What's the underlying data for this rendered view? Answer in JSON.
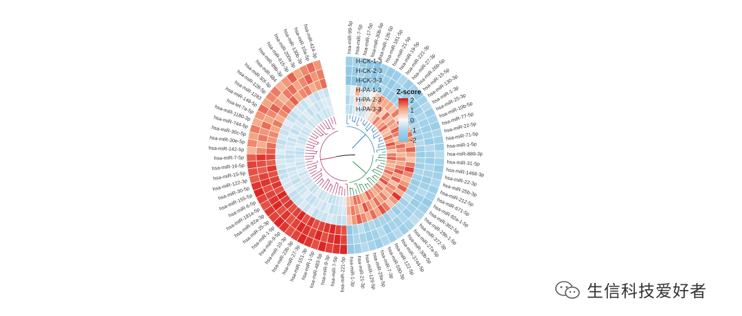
{
  "chart_data": {
    "type": "heatmap",
    "layout": "circular",
    "legend": {
      "title": "Z-score",
      "ticks": [
        "2",
        "1",
        "0",
        "-1",
        "-2"
      ],
      "colors": [
        "#d7191c",
        "#f4a582",
        "#f7f7f7",
        "#a6d3ea",
        "#7fbfe0"
      ]
    },
    "samples": [
      "H-CK-1-3",
      "H-CK-2-3",
      "H-CK-3-3",
      "H-PA-1-3",
      "H-PA-2-3",
      "H-PA-3-3"
    ],
    "mirnas": [
      "hsa-miR-99-5p",
      "hsa-miR-7-5p",
      "hsa-miR-17-5p",
      "hsa-miR-30b-5p",
      "hsa-miR-126-5p",
      "hsa-miR-181-5p",
      "hsa-miR-21-5p",
      "hsa-miR-19-5p",
      "hsa-miR-221-3p",
      "hsa-miR-27-3p",
      "hsa-miR-26b-5p",
      "hsa-miR-15-5p",
      "hsa-miR-130-3p",
      "hsa-miR-1-3p",
      "hsa-miR-25-3p",
      "hsa-miR-10b-5p",
      "hsa-miR-77-5p",
      "hsa-miR-22-5p",
      "hsa-miR-71-5p",
      "hsa-miR-1-5p",
      "hsa-miR-889-3p",
      "hsa-miR-31-5p",
      "hsa-miR-1468-3p",
      "hsa-miR-22-3p",
      "hsa-miR-25b-3p",
      "hsa-miR-212-5p",
      "hsa-miR-671-5p",
      "hsa-miR-92a-1-5p",
      "hsa-miR-362-5p",
      "hsa-miR-29b-1-5p",
      "hsa-miR-372-3p",
      "hsa-miR-27a-5p",
      "hsa-miR-30b-5p",
      "hsa-miR-3744-5p",
      "hsa-miR-122-5p",
      "hsa-miR-590-3p",
      "hsa-miR-7-3p",
      "hsa-miR-29a-5p",
      "hsa-miR-129-5p",
      "hsa-miR-21-3p",
      "hsa-miR-1-3p",
      "hsa-miR-221-5p",
      "hsa-miR-7-5p",
      "hsa-miR-9-3p",
      "hsa-miR-483-5p",
      "hsa-miR-1-5p",
      "hsa-miR-151-3p",
      "hsa-miR-27-3p",
      "hsa-miR-23b-3p",
      "hsa-miR-10-3p",
      "hsa-miR-9-5p",
      "hsa-miR-1-5p",
      "hsa-miR-25-3p",
      "hsa-miR-92a-3p",
      "hsa-miR-181a-5p",
      "hsa-miR-6-5p",
      "hsa-miR-155-5p",
      "hsa-miR-30-5p",
      "hsa-miR-122-3p",
      "hsa-miR-15-5p",
      "hsa-miR-16-5p",
      "hsa-miR-7-5p",
      "hsa-miR-142-5p",
      "hsa-miR-30e-5p",
      "hsa-miR-30c-5p",
      "hsa-miR-744-5p",
      "hsa-miR-1180-3p",
      "hsa-let-7a-5p",
      "hsa-miR-148-5p",
      "hsa-miR-1283",
      "hsa-miR-128-5p",
      "hsa-miR-30f-3p",
      "hsa-miR-484",
      "hsa-miR-99b-3p",
      "hsa-miR-615-3p",
      "hsa-miR-200a-3p",
      "hsa-miR-130b-3p",
      "hsa-miR-10a-5p",
      "hsa-miR-424-3p"
    ],
    "zscores": [
      [
        -1.2,
        -1.5,
        -1.8,
        -0.6,
        -0.9,
        -0.7
      ],
      [
        -1.0,
        -1.4,
        -1.6,
        -0.2,
        -0.5,
        -0.8
      ],
      [
        -1.3,
        -1.1,
        -1.7,
        0.8,
        0.3,
        -0.4
      ],
      [
        -1.5,
        -1.2,
        -1.4,
        -0.5,
        -0.7,
        -0.3
      ],
      [
        -1.7,
        -1.6,
        -1.2,
        -0.3,
        0.4,
        -0.6
      ],
      [
        -1.1,
        -1.3,
        -1.5,
        0.1,
        -0.2,
        -0.5
      ],
      [
        -1.4,
        -1.2,
        -0.9,
        0.6,
        0.9,
        0.2
      ],
      [
        -1.2,
        -1.5,
        -1.3,
        1.1,
        0.7,
        0.4
      ],
      [
        -0.9,
        -1.1,
        -1.4,
        0.9,
        1.2,
        0.6
      ],
      [
        -1.3,
        -1.0,
        -1.2,
        1.0,
        0.5,
        1.3
      ],
      [
        -1.0,
        -1.3,
        -1.1,
        0.7,
        1.4,
        0.9
      ],
      [
        -1.4,
        -1.1,
        -0.8,
        1.3,
        0.8,
        1.1
      ],
      [
        -1.1,
        -1.4,
        -1.2,
        0.5,
        1.1,
        1.5
      ],
      [
        -0.8,
        -1.2,
        -1.0,
        1.6,
        0.9,
        0.7
      ],
      [
        -1.2,
        -0.9,
        -1.3,
        1.2,
        1.5,
        0.8
      ],
      [
        -1.0,
        -1.1,
        -0.9,
        0.8,
        1.3,
        1.4
      ],
      [
        -1.3,
        -1.2,
        -1.1,
        1.4,
        0.6,
        1.0
      ],
      [
        -0.9,
        -1.0,
        -1.2,
        1.1,
        1.0,
        1.6
      ],
      [
        -1.1,
        -1.3,
        -0.8,
        0.9,
        1.4,
        1.2
      ],
      [
        -1.2,
        -0.8,
        -1.1,
        1.5,
        1.1,
        0.6
      ],
      [
        -0.8,
        -1.1,
        -1.3,
        1.0,
        0.8,
        1.3
      ],
      [
        -1.0,
        -1.2,
        -1.0,
        0.6,
        1.2,
        1.5
      ],
      [
        -1.3,
        -0.9,
        -1.2,
        1.3,
        0.9,
        1.0
      ],
      [
        -1.1,
        -1.0,
        -0.9,
        1.7,
        1.3,
        0.8
      ],
      [
        -0.9,
        -1.3,
        -1.1,
        1.2,
        1.6,
        1.1
      ],
      [
        -1.2,
        -1.1,
        -1.3,
        0.8,
        1.0,
        1.4
      ],
      [
        -1.0,
        -0.8,
        -1.2,
        1.1,
        1.5,
        0.9
      ],
      [
        -1.4,
        -1.2,
        -1.0,
        1.5,
        0.7,
        1.2
      ],
      [
        -1.1,
        -1.3,
        -0.7,
        0.9,
        1.2,
        1.6
      ],
      [
        -0.9,
        -1.0,
        -1.1,
        1.8,
        1.1,
        0.7
      ],
      [
        -0.7,
        -1.2,
        -0.9,
        1.1,
        0.8,
        1.3
      ],
      [
        -1.0,
        -0.9,
        -1.3,
        0.7,
        1.3,
        1.1
      ],
      [
        -1.2,
        -1.1,
        -0.8,
        1.3,
        1.0,
        0.9
      ],
      [
        -0.8,
        -1.0,
        -1.2,
        1.6,
        1.4,
        1.2
      ],
      [
        -1.1,
        -1.3,
        -1.0,
        1.0,
        0.9,
        1.5
      ],
      [
        -0.9,
        -0.8,
        -1.1,
        1.4,
        1.2,
        0.8
      ],
      [
        -1.3,
        -1.1,
        -0.9,
        0.9,
        1.6,
        1.0
      ],
      [
        -1.0,
        -1.2,
        -1.2,
        1.2,
        0.8,
        1.3
      ],
      [
        -0.8,
        -1.0,
        -0.7,
        1.5,
        1.1,
        1.4
      ],
      [
        -1.2,
        -0.9,
        -1.0,
        1.1,
        1.3,
        0.9
      ],
      [
        -1.5,
        -1.3,
        -1.6,
        0.6,
        0.9,
        0.7
      ],
      [
        1.9,
        1.7,
        1.6,
        -0.6,
        -0.4,
        -0.3
      ],
      [
        1.8,
        1.9,
        1.7,
        -0.7,
        -0.5,
        -0.4
      ],
      [
        1.7,
        1.8,
        1.9,
        -0.5,
        -0.6,
        -0.5
      ],
      [
        1.9,
        1.6,
        1.8,
        -0.4,
        -0.7,
        -0.6
      ],
      [
        1.6,
        1.9,
        1.7,
        -0.6,
        -0.3,
        -0.7
      ],
      [
        1.8,
        1.7,
        1.6,
        -0.5,
        -0.6,
        -0.4
      ],
      [
        1.9,
        1.8,
        1.8,
        -0.7,
        -0.4,
        -0.5
      ],
      [
        1.7,
        1.9,
        1.6,
        -0.3,
        -0.5,
        -0.6
      ],
      [
        1.6,
        1.7,
        1.9,
        -0.6,
        -0.7,
        -0.3
      ],
      [
        1.8,
        1.6,
        1.7,
        -0.4,
        -0.6,
        -0.5
      ],
      [
        1.9,
        1.8,
        1.6,
        -0.5,
        -0.3,
        -0.7
      ],
      [
        1.7,
        1.6,
        1.8,
        -0.6,
        -0.5,
        -0.4
      ],
      [
        1.8,
        1.9,
        1.7,
        -0.7,
        -0.6,
        -0.6
      ],
      [
        1.6,
        1.8,
        1.9,
        -0.3,
        -0.4,
        -0.5
      ],
      [
        1.7,
        1.7,
        1.6,
        -0.5,
        -0.7,
        -0.4
      ],
      [
        1.9,
        1.6,
        1.8,
        -0.4,
        -0.5,
        -0.6
      ],
      [
        1.8,
        1.8,
        1.7,
        -0.6,
        -0.4,
        -0.3
      ],
      [
        1.5,
        1.7,
        1.6,
        -0.7,
        -0.6,
        -0.5
      ],
      [
        1.6,
        1.5,
        1.8,
        -0.5,
        -0.3,
        -0.6
      ],
      [
        1.7,
        1.6,
        1.5,
        -0.4,
        -0.5,
        -0.4
      ],
      [
        1.5,
        1.8,
        1.7,
        -0.6,
        -0.7,
        -0.5
      ],
      [
        0.8,
        1.2,
        1.5,
        -0.3,
        -0.6,
        -0.7
      ],
      [
        1.2,
        0.9,
        1.4,
        -0.5,
        -0.4,
        -0.6
      ],
      [
        1.0,
        1.3,
        1.1,
        -0.7,
        -0.5,
        -0.3
      ],
      [
        1.3,
        1.1,
        1.2,
        -0.4,
        -0.6,
        -0.5
      ],
      [
        0.9,
        1.4,
        1.0,
        -0.6,
        -0.3,
        -0.7
      ],
      [
        1.1,
        1.0,
        1.3,
        -0.5,
        -0.7,
        -0.4
      ],
      [
        1.4,
        1.2,
        0.9,
        -0.3,
        -0.5,
        -0.6
      ],
      [
        1.0,
        1.5,
        1.2,
        -0.6,
        -0.4,
        -0.5
      ],
      [
        1.2,
        1.1,
        1.4,
        -0.7,
        -0.6,
        -0.3
      ],
      [
        1.3,
        0.8,
        1.1,
        -0.4,
        -0.5,
        -0.6
      ],
      [
        0.9,
        1.3,
        1.5,
        -0.5,
        -0.3,
        -0.4
      ],
      [
        1.1,
        1.4,
        1.0,
        -0.6,
        -0.7,
        -0.5
      ],
      [
        1.5,
        1.0,
        1.2,
        -0.3,
        -0.4,
        -0.7
      ],
      [
        1.0,
        1.2,
        1.3,
        -0.5,
        -0.6,
        -0.4
      ],
      [
        1.2,
        1.5,
        0.9,
        -0.7,
        -0.5,
        -0.6
      ],
      [
        1.4,
        1.1,
        1.1,
        -0.4,
        -0.3,
        -0.5
      ],
      [
        1.1,
        1.3,
        1.4,
        -0.6,
        -0.4,
        -0.3
      ]
    ]
  },
  "watermark": {
    "text": "生信科技爱好者",
    "icon": "wechat-icon"
  }
}
